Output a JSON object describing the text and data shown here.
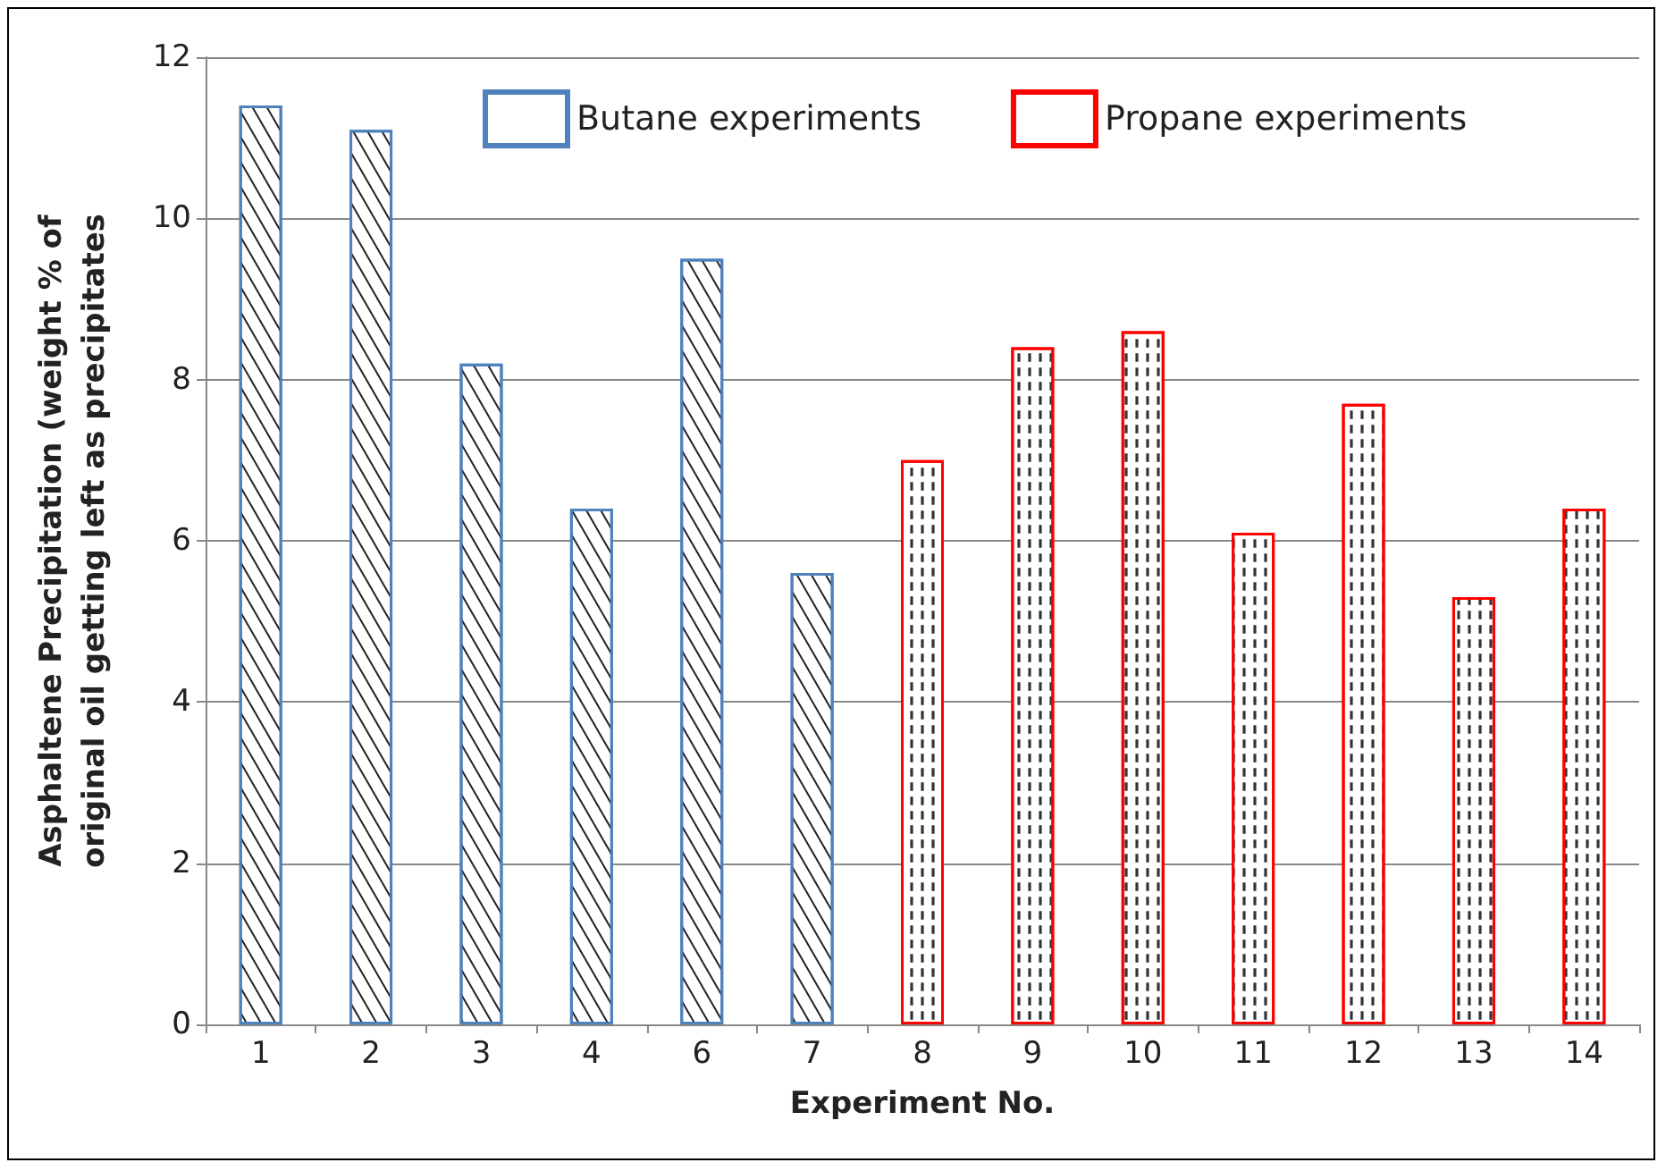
{
  "chart_data": {
    "type": "bar",
    "xlabel": "Experiment No.",
    "ylabel": "Asphaltene Precipitation (weight % of\noriginal oil getting left as precipitates",
    "categories": [
      "1",
      "2",
      "3",
      "4",
      "6",
      "7",
      "8",
      "9",
      "10",
      "11",
      "12",
      "13",
      "14"
    ],
    "series": [
      {
        "name": "Butane experiments",
        "color": "#4f81bd",
        "values": [
          11.4,
          11.1,
          8.2,
          6.4,
          9.5,
          5.6,
          null,
          null,
          null,
          null,
          null,
          null,
          null
        ]
      },
      {
        "name": "Propane experiments",
        "color": "#ff0000",
        "values": [
          null,
          null,
          null,
          null,
          null,
          null,
          7.0,
          8.4,
          8.6,
          6.1,
          7.7,
          5.3,
          6.4
        ]
      }
    ],
    "ylim": [
      0,
      12
    ],
    "yticks": [
      0,
      2,
      4,
      6,
      8,
      10,
      12
    ],
    "grid": "y",
    "legend": "top"
  }
}
